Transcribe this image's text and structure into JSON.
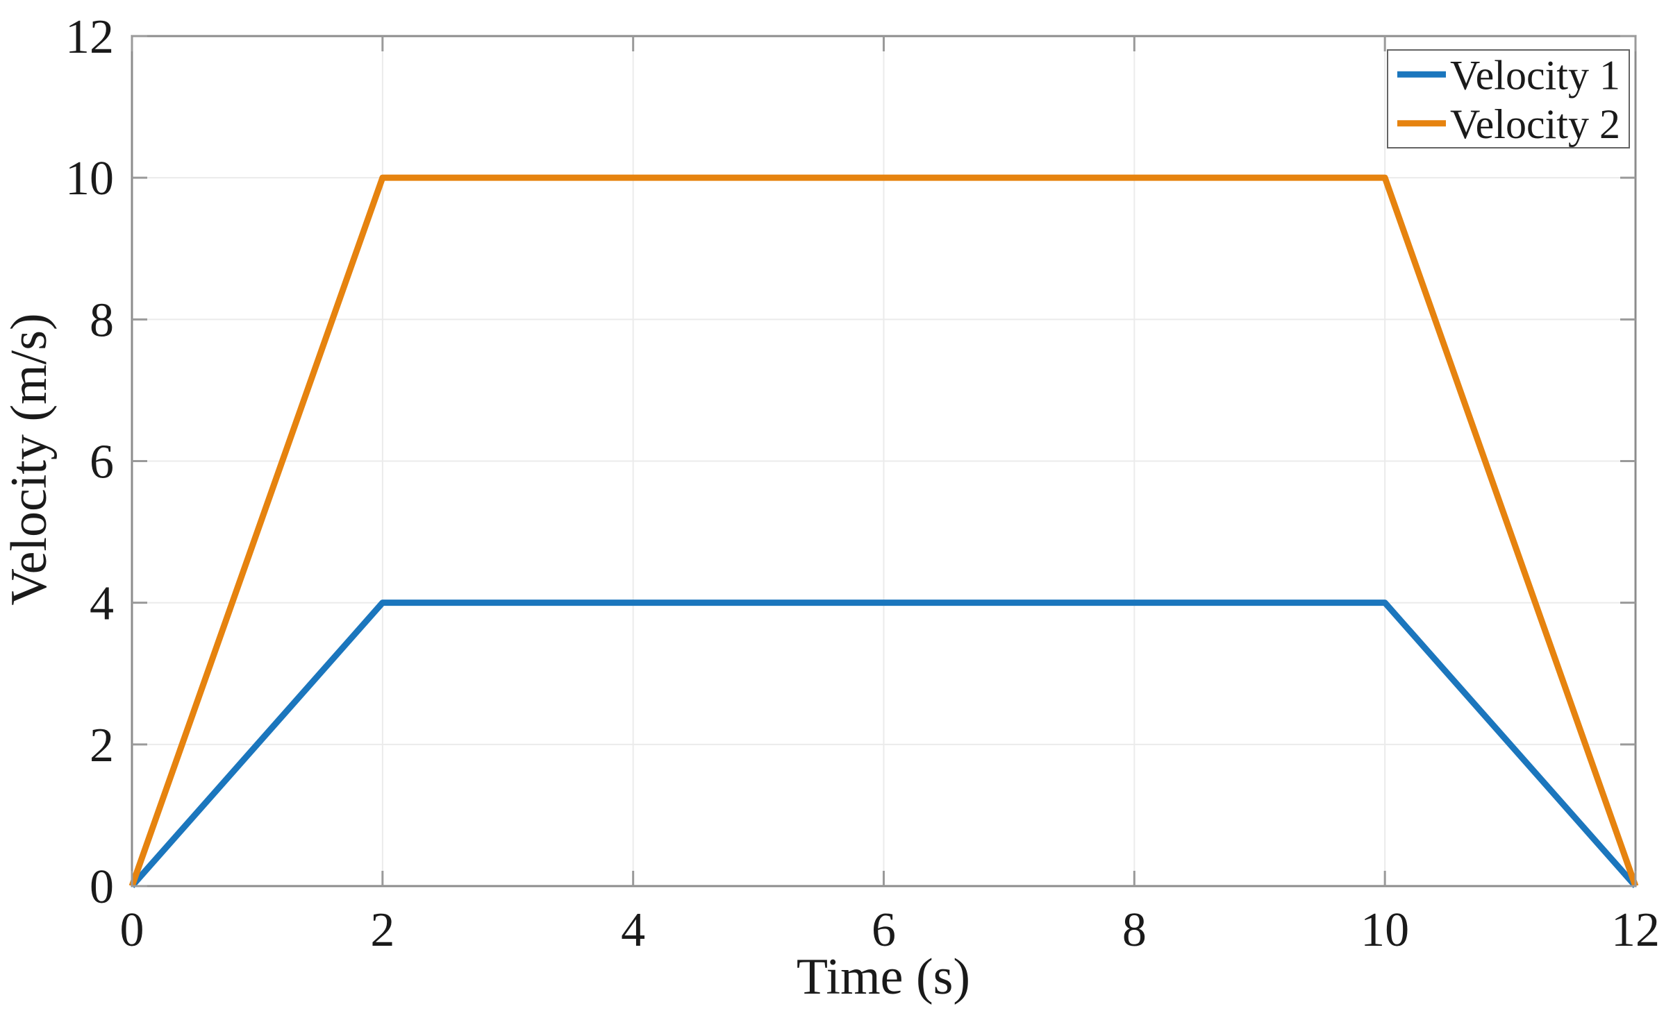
{
  "figure": {
    "background_color": "#ffffff"
  },
  "chart_data": {
    "type": "line",
    "title": "",
    "xlabel": "Time (s)",
    "ylabel": "Velocity (m/s)",
    "xlim": [
      0,
      12
    ],
    "ylim": [
      0,
      12
    ],
    "xticks": [
      0,
      2,
      4,
      6,
      8,
      10,
      12
    ],
    "yticks": [
      0,
      2,
      4,
      6,
      8,
      10,
      12
    ],
    "grid": true,
    "box": true,
    "legend_position": "top-right",
    "series": [
      {
        "name": "Velocity 1",
        "color": "#1b76bd",
        "x": [
          0,
          2,
          10,
          12
        ],
        "y": [
          0,
          4,
          4,
          0
        ]
      },
      {
        "name": "Velocity 2",
        "color": "#e6830f",
        "x": [
          0,
          2,
          10,
          12
        ],
        "y": [
          0,
          10,
          10,
          0
        ]
      }
    ]
  },
  "style": {
    "axis_frame_color": "#8c8c8c",
    "tick_color": "#9a9a9a",
    "grid_color": "#ebebeb",
    "text_color": "#1a1a1a",
    "legend_border_color": "#636363",
    "legend_background": "#ffffff",
    "series_line_width": 9
  }
}
